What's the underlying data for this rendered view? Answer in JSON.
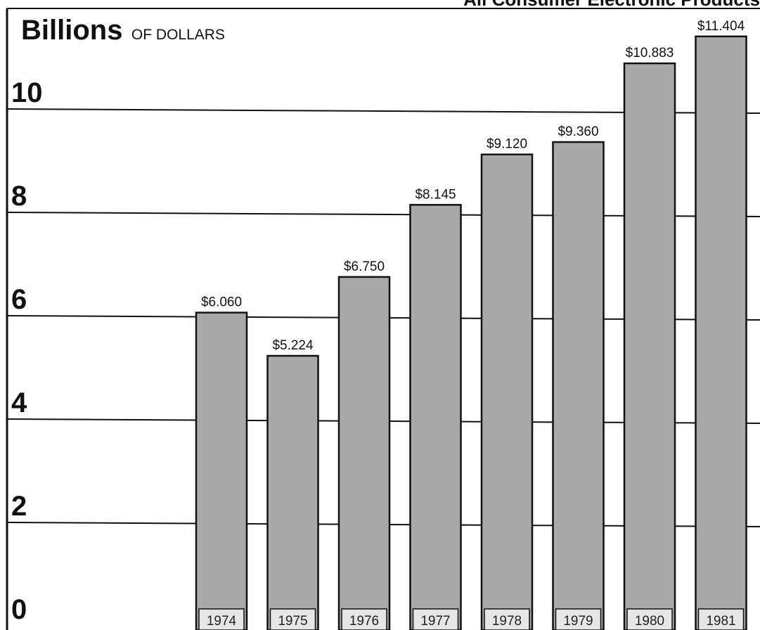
{
  "chart_data": {
    "type": "bar",
    "title": "All Consumer Electronic Products",
    "unit_label_main": "Billions",
    "unit_label_sub": "OF DOLLARS",
    "categories": [
      "1974",
      "1975",
      "1976",
      "1977",
      "1978",
      "1979",
      "1980",
      "1981"
    ],
    "values": [
      6.06,
      5.224,
      6.75,
      8.145,
      9.12,
      9.36,
      10.883,
      11.404
    ],
    "value_labels": [
      "$6.060",
      "$5.224",
      "$6.750",
      "$8.145",
      "$9.120",
      "$9.360",
      "$10.883",
      "$11.404"
    ],
    "yticks": [
      "0",
      "2",
      "4",
      "6",
      "8",
      "10"
    ],
    "ylim": [
      0,
      12
    ],
    "grid": true,
    "colors": {
      "bar_fill": "#a9a9a9",
      "bar_stroke": "#111111",
      "grid": "#111111",
      "background": "#ffffff"
    }
  }
}
